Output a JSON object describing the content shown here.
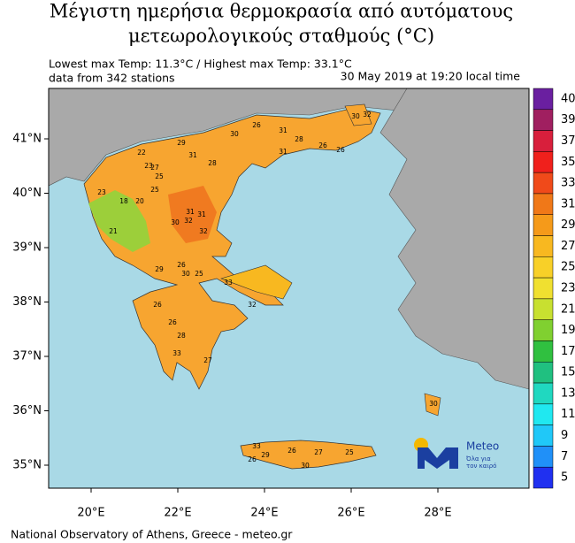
{
  "title_lines": [
    "Μέγιστη ημερήσια θερμοκρασία από αυτόματους",
    "μετεωρολογικούς σταθμούς (°C)"
  ],
  "info": {
    "range": "Lowest max Temp: 11.3°C / Highest max Temp: 33.1°C",
    "stations": "data from 342 stations",
    "time": "30 May 2019 at 19:20 local time"
  },
  "lat_labels": [
    "41°N",
    "40°N",
    "39°N",
    "38°N",
    "37°N",
    "36°N",
    "35°N"
  ],
  "lon_labels": [
    "20°E",
    "22°E",
    "24°E",
    "26°E",
    "28°E"
  ],
  "colorbar": {
    "ticks": [
      40,
      39,
      37,
      35,
      33,
      31,
      29,
      27,
      25,
      23,
      21,
      19,
      17,
      15,
      13,
      11,
      9,
      7,
      5
    ],
    "colors": [
      "#6a1fa0",
      "#a01f60",
      "#d81f3c",
      "#f0201c",
      "#f04a1a",
      "#f07818",
      "#f59a1a",
      "#f8b820",
      "#f8d028",
      "#f0e030",
      "#c8e030",
      "#80d030",
      "#30c040",
      "#20c080",
      "#20d8c0",
      "#20e8f0",
      "#20c8f8",
      "#2090f8",
      "#2030f0"
    ]
  },
  "stations": [
    30,
    31,
    26,
    28,
    31,
    26,
    26,
    30,
    32,
    29,
    22,
    31,
    27,
    25,
    23,
    23,
    18,
    21,
    20,
    25,
    28,
    31,
    31,
    32,
    30,
    32,
    29,
    26,
    30,
    25,
    33,
    32,
    26,
    33,
    27,
    26,
    28,
    33,
    29,
    26,
    30,
    27,
    25,
    26,
    30
  ],
  "footer": "National Observatory of Athens, Greece - meteo.gr",
  "logo": {
    "name": "Meteo",
    "tagline": [
      "Όλα για",
      "τον καιρό"
    ]
  }
}
